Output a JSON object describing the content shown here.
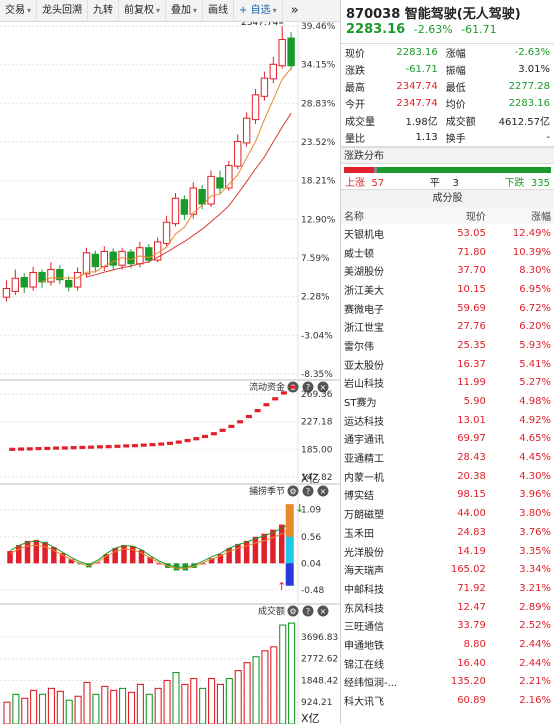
{
  "toolbar": {
    "items": [
      {
        "label": "交易",
        "caret": true
      },
      {
        "label": "龙头回溯",
        "caret": false
      },
      {
        "label": "九转",
        "caret": false
      },
      {
        "label": "前复权",
        "caret": true
      },
      {
        "label": "叠加",
        "caret": true
      },
      {
        "label": "画线",
        "caret": false
      },
      {
        "label": "+ 自选",
        "caret": true
      }
    ],
    "more": "»"
  },
  "main_chart": {
    "high_label": "2347.74",
    "pct_labels": [
      "39.46%",
      "34.15%",
      "28.83%",
      "23.52%",
      "18.21%",
      "12.90%",
      "7.59%",
      "2.28%",
      "-3.04%",
      "-8.35%"
    ],
    "candles": [
      {
        "o": 2.2,
        "c": 3.4,
        "h": 4.5,
        "l": 1.6
      },
      {
        "o": 3.0,
        "c": 4.8,
        "h": 6.0,
        "l": 2.5
      },
      {
        "o": 4.9,
        "c": 3.6,
        "h": 5.5,
        "l": 2.8
      },
      {
        "o": 3.6,
        "c": 5.6,
        "h": 6.4,
        "l": 3.1
      },
      {
        "o": 5.6,
        "c": 4.3,
        "h": 6.0,
        "l": 3.5
      },
      {
        "o": 4.3,
        "c": 6.0,
        "h": 7.0,
        "l": 3.8
      },
      {
        "o": 6.0,
        "c": 4.6,
        "h": 6.6,
        "l": 4.0
      },
      {
        "o": 4.5,
        "c": 3.6,
        "h": 5.1,
        "l": 3.0
      },
      {
        "o": 3.6,
        "c": 5.6,
        "h": 6.3,
        "l": 3.1
      },
      {
        "o": 5.4,
        "c": 8.3,
        "h": 9.0,
        "l": 4.9
      },
      {
        "o": 8.1,
        "c": 6.4,
        "h": 8.6,
        "l": 5.6
      },
      {
        "o": 6.4,
        "c": 8.5,
        "h": 9.2,
        "l": 5.8
      },
      {
        "o": 8.4,
        "c": 6.6,
        "h": 8.9,
        "l": 6.0
      },
      {
        "o": 6.6,
        "c": 8.5,
        "h": 9.0,
        "l": 6.0
      },
      {
        "o": 8.4,
        "c": 6.8,
        "h": 8.8,
        "l": 6.2
      },
      {
        "o": 6.8,
        "c": 9.0,
        "h": 9.8,
        "l": 6.3
      },
      {
        "o": 9.0,
        "c": 7.3,
        "h": 9.5,
        "l": 6.9
      },
      {
        "o": 7.3,
        "c": 9.8,
        "h": 10.4,
        "l": 7.0
      },
      {
        "o": 9.6,
        "c": 12.5,
        "h": 13.4,
        "l": 9.2
      },
      {
        "o": 12.3,
        "c": 15.8,
        "h": 16.5,
        "l": 11.9
      },
      {
        "o": 15.6,
        "c": 13.6,
        "h": 16.2,
        "l": 12.8
      },
      {
        "o": 13.6,
        "c": 17.2,
        "h": 18.0,
        "l": 13.0
      },
      {
        "o": 17.0,
        "c": 15.0,
        "h": 17.6,
        "l": 14.3
      },
      {
        "o": 15.0,
        "c": 18.8,
        "h": 19.6,
        "l": 14.6
      },
      {
        "o": 18.6,
        "c": 17.2,
        "h": 19.6,
        "l": 16.4
      },
      {
        "o": 17.2,
        "c": 20.3,
        "h": 20.9,
        "l": 16.8
      },
      {
        "o": 20.2,
        "c": 23.6,
        "h": 24.6,
        "l": 19.8
      },
      {
        "o": 23.4,
        "c": 26.8,
        "h": 27.6,
        "l": 22.9
      },
      {
        "o": 26.6,
        "c": 30.0,
        "h": 30.8,
        "l": 26.0
      },
      {
        "o": 29.8,
        "c": 32.3,
        "h": 33.2,
        "l": 29.2
      },
      {
        "o": 32.2,
        "c": 34.2,
        "h": 35.2,
        "l": 31.6
      },
      {
        "o": 34.0,
        "c": 37.6,
        "h": 39.46,
        "l": 33.6
      },
      {
        "o": 37.8,
        "c": 34.0,
        "h": 38.6,
        "l": 33.4
      }
    ]
  },
  "flow_panel": {
    "title": "流动资金",
    "labels": [
      "269.36",
      "227.18",
      "185.00",
      "142.82"
    ],
    "unit": "X亿",
    "values": [
      185.0,
      185.4,
      185.7,
      186.1,
      186.4,
      186.9,
      187.1,
      187.5,
      187.9,
      188.3,
      188.8,
      189.1,
      189.6,
      190.2,
      190.6,
      191.4,
      192.1,
      193.0,
      194.2,
      196.0,
      198.4,
      201.2,
      204.6,
      208.8,
      214.0,
      220.0,
      227.0,
      235.0,
      244.0,
      253.0,
      262.0,
      271.0,
      280.0
    ]
  },
  "season_panel": {
    "title": "捕捞季节",
    "labels": [
      "1.09",
      "0.56",
      "0.04",
      "-0.48"
    ],
    "bars": [
      0.28,
      0.4,
      0.48,
      0.5,
      0.46,
      0.36,
      0.24,
      0.12,
      0.02,
      -0.04,
      0.06,
      0.22,
      0.34,
      0.4,
      0.38,
      0.3,
      0.16,
      0.04,
      -0.05,
      -0.1,
      -0.1,
      -0.05,
      0.04,
      0.14,
      0.22,
      0.34,
      0.42,
      0.48,
      0.56,
      0.62,
      0.7,
      0.8,
      0.92
    ]
  },
  "volume_panel": {
    "title": "成交额",
    "labels": [
      "3696.83",
      "2772.62",
      "1848.42",
      "924.21"
    ],
    "unit": "X亿",
    "values": [
      0.22,
      0.3,
      0.26,
      0.34,
      0.3,
      0.36,
      0.33,
      0.24,
      0.28,
      0.42,
      0.3,
      0.38,
      0.34,
      0.36,
      0.32,
      0.4,
      0.3,
      0.36,
      0.44,
      0.52,
      0.4,
      0.46,
      0.36,
      0.46,
      0.4,
      0.46,
      0.54,
      0.62,
      0.68,
      0.74,
      0.78,
      1.0,
      1.02
    ]
  },
  "quote": {
    "title": "870038 智能驾驶(无人驾驶)",
    "price": "2283.16",
    "change_pct": "-2.63%",
    "change": "-61.71",
    "rows": [
      [
        "现价",
        "2283.16",
        "涨幅",
        "-2.63%"
      ],
      [
        "涨跌",
        "-61.71",
        "振幅",
        "3.01%"
      ],
      [
        "最高",
        "2347.74",
        "最低",
        "2277.28"
      ],
      [
        "今开",
        "2347.74",
        "均价",
        "2283.16"
      ],
      [
        "成交量",
        "1.98亿",
        "成交额",
        "4612.57亿"
      ],
      [
        "量比",
        "1.13",
        "换手",
        "-"
      ]
    ]
  },
  "distribution": {
    "title": "涨跌分布",
    "up_label": "上涨",
    "up": "57",
    "flat_label": "平",
    "flat": "3",
    "down_label": "下跌",
    "down": "335"
  },
  "components": {
    "title": "成分股",
    "headers": [
      "名称",
      "现价",
      "涨幅"
    ],
    "rows": [
      [
        "天银机电",
        "53.05",
        "12.49%"
      ],
      [
        "威士顿",
        "71.80",
        "10.39%"
      ],
      [
        "美湖股份",
        "37.70",
        "8.30%"
      ],
      [
        "浙江美大",
        "10.15",
        "6.95%"
      ],
      [
        "赛微电子",
        "59.69",
        "6.72%"
      ],
      [
        "浙江世宝",
        "27.76",
        "6.20%"
      ],
      [
        "雷尔伟",
        "25.35",
        "5.93%"
      ],
      [
        "亚太股份",
        "16.37",
        "5.41%"
      ],
      [
        "岩山科技",
        "11.99",
        "5.27%"
      ],
      [
        "ST赛为",
        "5.90",
        "4.98%"
      ],
      [
        "运达科技",
        "13.01",
        "4.92%"
      ],
      [
        "通宇通讯",
        "69.97",
        "4.65%"
      ],
      [
        "亚通精工",
        "28.43",
        "4.45%"
      ],
      [
        "内蒙一机",
        "20.38",
        "4.30%"
      ],
      [
        "博实结",
        "98.15",
        "3.96%"
      ],
      [
        "万朗磁塑",
        "44.00",
        "3.80%"
      ],
      [
        "玉禾田",
        "24.83",
        "3.76%"
      ],
      [
        "光洋股份",
        "14.19",
        "3.35%"
      ],
      [
        "海天瑞声",
        "165.02",
        "3.34%"
      ],
      [
        "中邮科技",
        "71.92",
        "3.21%"
      ],
      [
        "东风科技",
        "12.47",
        "2.89%"
      ],
      [
        "三旺通信",
        "33.79",
        "2.52%"
      ],
      [
        "申通地铁",
        "8.80",
        "2.44%"
      ],
      [
        "锦江在线",
        "16.40",
        "2.44%"
      ],
      [
        "经纬恒润-...",
        "135.20",
        "2.21%"
      ],
      [
        "科大讯飞",
        "60.89",
        "2.16%"
      ]
    ]
  },
  "colors": {
    "up": "#e0202a",
    "down": "#1a9a2a",
    "ma1": "#e88a2a",
    "ma2": "#d83a3a"
  }
}
